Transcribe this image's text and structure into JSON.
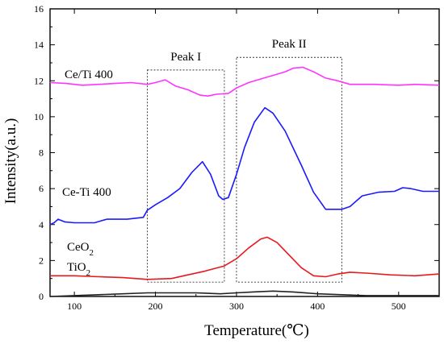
{
  "chart_data": {
    "type": "line",
    "xlabel": "Temperature(℃)",
    "ylabel": "Intensity(a.u.)",
    "xlim": [
      70,
      550
    ],
    "ylim": [
      0,
      16
    ],
    "xticks": [
      100,
      200,
      300,
      400,
      500
    ],
    "yticks": [
      0,
      2,
      4,
      6,
      8,
      10,
      12,
      14,
      16
    ],
    "grid": false,
    "legend": "none",
    "series": [
      {
        "name": "Ce/Ti 400",
        "label_main": "Ce/Ti 400",
        "label_sub": "",
        "label_suffix": "",
        "color": "#ff33ff",
        "points": [
          [
            70,
            11.9
          ],
          [
            90,
            11.85
          ],
          [
            110,
            11.75
          ],
          [
            130,
            11.8
          ],
          [
            150,
            11.85
          ],
          [
            170,
            11.9
          ],
          [
            190,
            11.8
          ],
          [
            200,
            11.9
          ],
          [
            212,
            12.05
          ],
          [
            225,
            11.7
          ],
          [
            240,
            11.5
          ],
          [
            255,
            11.2
          ],
          [
            265,
            11.15
          ],
          [
            275,
            11.25
          ],
          [
            290,
            11.3
          ],
          [
            300,
            11.6
          ],
          [
            315,
            11.9
          ],
          [
            330,
            12.1
          ],
          [
            345,
            12.3
          ],
          [
            360,
            12.5
          ],
          [
            370,
            12.7
          ],
          [
            382,
            12.75
          ],
          [
            395,
            12.5
          ],
          [
            410,
            12.15
          ],
          [
            425,
            12.0
          ],
          [
            440,
            11.8
          ],
          [
            470,
            11.8
          ],
          [
            500,
            11.75
          ],
          [
            520,
            11.8
          ],
          [
            550,
            11.75
          ]
        ]
      },
      {
        "name": "Ce-Ti 400",
        "label_main": "Ce-Ti 400",
        "label_sub": "",
        "label_suffix": "",
        "color": "#1a1aff",
        "points": [
          [
            70,
            4.0
          ],
          [
            75,
            4.1
          ],
          [
            80,
            4.3
          ],
          [
            88,
            4.15
          ],
          [
            100,
            4.1
          ],
          [
            125,
            4.1
          ],
          [
            140,
            4.3
          ],
          [
            165,
            4.3
          ],
          [
            185,
            4.4
          ],
          [
            190,
            4.8
          ],
          [
            200,
            5.1
          ],
          [
            215,
            5.5
          ],
          [
            230,
            6.0
          ],
          [
            245,
            6.9
          ],
          [
            258,
            7.5
          ],
          [
            268,
            6.8
          ],
          [
            278,
            5.6
          ],
          [
            283,
            5.4
          ],
          [
            290,
            5.5
          ],
          [
            300,
            6.8
          ],
          [
            310,
            8.3
          ],
          [
            322,
            9.7
          ],
          [
            335,
            10.5
          ],
          [
            345,
            10.2
          ],
          [
            360,
            9.2
          ],
          [
            380,
            7.3
          ],
          [
            395,
            5.8
          ],
          [
            410,
            4.85
          ],
          [
            420,
            4.85
          ],
          [
            430,
            4.85
          ],
          [
            440,
            5.0
          ],
          [
            455,
            5.6
          ],
          [
            475,
            5.8
          ],
          [
            495,
            5.85
          ],
          [
            505,
            6.05
          ],
          [
            515,
            6.0
          ],
          [
            530,
            5.85
          ],
          [
            550,
            5.85
          ]
        ]
      },
      {
        "name": "CeO2",
        "label_main": "CeO",
        "label_sub": "2",
        "label_suffix": "",
        "color": "#e8191c",
        "points": [
          [
            70,
            1.15
          ],
          [
            100,
            1.15
          ],
          [
            130,
            1.1
          ],
          [
            160,
            1.05
          ],
          [
            190,
            0.95
          ],
          [
            220,
            1.0
          ],
          [
            240,
            1.2
          ],
          [
            260,
            1.4
          ],
          [
            285,
            1.7
          ],
          [
            300,
            2.1
          ],
          [
            315,
            2.7
          ],
          [
            330,
            3.2
          ],
          [
            338,
            3.3
          ],
          [
            350,
            3.0
          ],
          [
            365,
            2.3
          ],
          [
            380,
            1.6
          ],
          [
            395,
            1.15
          ],
          [
            410,
            1.1
          ],
          [
            425,
            1.25
          ],
          [
            440,
            1.35
          ],
          [
            460,
            1.3
          ],
          [
            490,
            1.2
          ],
          [
            520,
            1.15
          ],
          [
            550,
            1.25
          ]
        ]
      },
      {
        "name": "TiO2",
        "label_main": "TiO",
        "label_sub": "2",
        "label_suffix": "",
        "color": "#222222",
        "points": [
          [
            70,
            0.0
          ],
          [
            100,
            0.05
          ],
          [
            130,
            0.1
          ],
          [
            160,
            0.15
          ],
          [
            190,
            0.2
          ],
          [
            220,
            0.2
          ],
          [
            250,
            0.2
          ],
          [
            280,
            0.15
          ],
          [
            300,
            0.2
          ],
          [
            320,
            0.25
          ],
          [
            345,
            0.3
          ],
          [
            370,
            0.25
          ],
          [
            400,
            0.15
          ],
          [
            430,
            0.1
          ],
          [
            460,
            0.05
          ],
          [
            500,
            0.05
          ],
          [
            550,
            0.05
          ]
        ]
      }
    ],
    "annotations": [
      {
        "text": "Peak I",
        "box_x": [
          190,
          285
        ],
        "box_y": [
          0.8,
          12.6
        ]
      },
      {
        "text": "Peak II",
        "box_x": [
          300,
          430
        ],
        "box_y": [
          0.8,
          13.3
        ]
      }
    ]
  }
}
